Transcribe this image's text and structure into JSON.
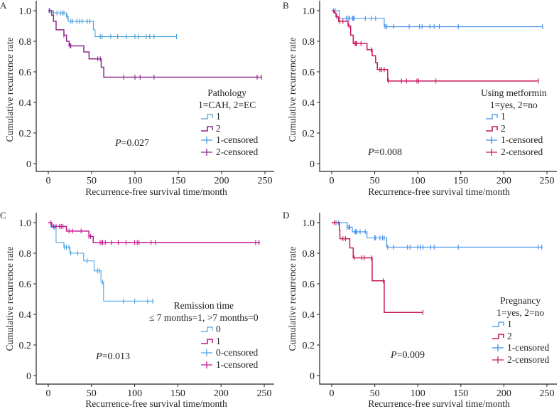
{
  "chart_data": [
    {
      "type": "line",
      "panel": "A",
      "ylabel": "Cumulative recurrence rate",
      "xlabel": "Recurrence-free survival time/month",
      "xlim": [
        0,
        250
      ],
      "ylim": [
        0,
        1.0
      ],
      "xticks": [
        0,
        50,
        100,
        150,
        200,
        250
      ],
      "yticks": [
        0,
        0.2,
        0.4,
        0.6,
        0.8,
        1.0
      ],
      "legend_title": "Pathology",
      "legend_subtitle": "1=CAH, 2=EC",
      "legend_position": "right",
      "p_label": "P",
      "p_value": "=0.027",
      "series": [
        {
          "name": "1",
          "censored_name": "1-censored",
          "color": "#4a9edb",
          "steps": [
            [
              0,
              1
            ],
            [
              6,
              0.985
            ],
            [
              21,
              0.96
            ],
            [
              23,
              0.93
            ],
            [
              52,
              0.875
            ],
            [
              54,
              0.83
            ],
            [
              148,
              0.83
            ]
          ],
          "censored": [
            2,
            6,
            10,
            14,
            16,
            18,
            22,
            26,
            28,
            33,
            36,
            39,
            45,
            48,
            60,
            62,
            72,
            80,
            90,
            100,
            104,
            113,
            117,
            122,
            148
          ]
        },
        {
          "name": "2",
          "censored_name": "2-censored",
          "color": "#8e2a8e",
          "steps": [
            [
              0,
              1
            ],
            [
              4,
              0.97
            ],
            [
              6,
              0.93
            ],
            [
              9,
              0.875
            ],
            [
              18,
              0.84
            ],
            [
              21,
              0.8
            ],
            [
              24,
              0.77
            ],
            [
              41,
              0.73
            ],
            [
              47,
              0.685
            ],
            [
              61,
              0.63
            ],
            [
              64,
              0.565
            ],
            [
              246,
              0.565
            ]
          ],
          "censored": [
            1,
            18,
            25,
            26,
            57,
            60,
            87,
            100,
            106,
            122,
            241,
            246
          ]
        }
      ]
    },
    {
      "type": "line",
      "panel": "B",
      "ylabel": "Cumulative recurrence rate",
      "xlabel": "Recurrence-free survival time/month",
      "xlim": [
        0,
        250
      ],
      "ylim": [
        0,
        1.0
      ],
      "xticks": [
        0,
        50,
        100,
        150,
        200,
        250
      ],
      "yticks": [
        0,
        0.2,
        0.4,
        0.6,
        0.8,
        1.0
      ],
      "legend_title": "Using metformin",
      "legend_subtitle": "1=yes, 2=no",
      "legend_position": "right",
      "p_label": "P",
      "p_value": "=0.008",
      "series": [
        {
          "name": "1",
          "censored_name": "1-censored",
          "color": "#3d8fe8",
          "steps": [
            [
              0,
              1
            ],
            [
              9,
              0.95
            ],
            [
              61,
              0.895
            ],
            [
              245,
              0.895
            ]
          ],
          "censored": [
            2,
            4,
            17,
            19,
            21,
            24,
            25,
            26,
            39,
            46,
            51,
            62,
            64,
            72,
            90,
            102,
            105,
            114,
            119,
            125,
            147,
            245
          ]
        },
        {
          "name": "2",
          "censored_name": "2-censored",
          "color": "#c9195f",
          "steps": [
            [
              0,
              1
            ],
            [
              3,
              0.985
            ],
            [
              5,
              0.96
            ],
            [
              8,
              0.93
            ],
            [
              19,
              0.9
            ],
            [
              22,
              0.84
            ],
            [
              25,
              0.785
            ],
            [
              41,
              0.745
            ],
            [
              47,
              0.705
            ],
            [
              51,
              0.66
            ],
            [
              53,
              0.615
            ],
            [
              65,
              0.54
            ],
            [
              240,
              0.54
            ]
          ],
          "censored": [
            6,
            9,
            13,
            20,
            27,
            28,
            29,
            34,
            46,
            56,
            58,
            61,
            66,
            81,
            87,
            99,
            101,
            121,
            240
          ]
        }
      ]
    },
    {
      "type": "line",
      "panel": "C",
      "ylabel": "Cumulative recurrence rate",
      "xlabel": "Recurrence-free survival time/month",
      "xlim": [
        0,
        250
      ],
      "ylim": [
        0,
        1.0
      ],
      "xticks": [
        0,
        50,
        100,
        150,
        200,
        250
      ],
      "yticks": [
        0,
        0.2,
        0.4,
        0.6,
        0.8,
        1.0
      ],
      "legend_title": "Remission time",
      "legend_subtitle": "≤ 7 months=1, >7 months=0",
      "legend_position": "right",
      "p_label": "P",
      "p_value": "=0.013",
      "series": [
        {
          "name": "0",
          "censored_name": "0-censored",
          "color": "#4aa6e8",
          "steps": [
            [
              0,
              1
            ],
            [
              3,
              0.97
            ],
            [
              9,
              0.87
            ],
            [
              18,
              0.84
            ],
            [
              25,
              0.8
            ],
            [
              41,
              0.75
            ],
            [
              53,
              0.685
            ],
            [
              61,
              0.61
            ],
            [
              64,
              0.487
            ],
            [
              122,
              0.487
            ]
          ],
          "censored": [
            7,
            19,
            21,
            24,
            26,
            34,
            45,
            57,
            59,
            63,
            87,
            100,
            115,
            121
          ]
        },
        {
          "name": "1",
          "censored_name": "1-censored",
          "color": "#c4188f",
          "steps": [
            [
              0,
              1
            ],
            [
              4,
              0.975
            ],
            [
              21,
              0.945
            ],
            [
              47,
              0.91
            ],
            [
              52,
              0.87
            ],
            [
              245,
              0.87
            ]
          ],
          "censored": [
            3,
            6,
            9,
            13,
            15,
            17,
            24,
            28,
            38,
            47,
            49,
            60,
            62,
            63,
            66,
            73,
            81,
            90,
            100,
            103,
            105,
            119,
            124,
            240,
            244
          ]
        }
      ]
    },
    {
      "type": "line",
      "panel": "D",
      "ylabel": "Cumulative recurrence rate",
      "xlabel": "Recurrence-free survival time/month",
      "xlim": [
        0,
        250
      ],
      "ylim": [
        0,
        1.0
      ],
      "xticks": [
        0,
        50,
        100,
        150,
        200,
        250
      ],
      "yticks": [
        0,
        0.2,
        0.4,
        0.6,
        0.8,
        1.0
      ],
      "legend_title": "Pregnancy",
      "legend_subtitle": "1=yes, 2=no",
      "legend_position": "right",
      "p_label": "P",
      "p_value": "=0.009",
      "series": [
        {
          "name": "1",
          "censored_name": "1-censored",
          "color": "#3d8fe8",
          "steps": [
            [
              0,
              1
            ],
            [
              18,
              0.97
            ],
            [
              24,
              0.94
            ],
            [
              41,
              0.9
            ],
            [
              64,
              0.84
            ],
            [
              245,
              0.84
            ]
          ],
          "censored": [
            5,
            8,
            18,
            20,
            21,
            27,
            28,
            29,
            33,
            39,
            50,
            51,
            56,
            59,
            61,
            65,
            72,
            88,
            91,
            100,
            103,
            106,
            115,
            119,
            147,
            240,
            244
          ]
        },
        {
          "name": "2",
          "censored_name": "2-censored",
          "color": "#c9195f",
          "steps": [
            [
              0,
              1
            ],
            [
              9,
              0.95
            ],
            [
              9.5,
              0.895
            ],
            [
              21,
              0.835
            ],
            [
              25,
              0.77
            ],
            [
              47,
              0.62
            ],
            [
              61,
              0.413
            ],
            [
              106,
              0.413
            ]
          ],
          "censored": [
            3,
            13,
            16,
            26,
            35,
            38,
            46,
            60,
            106
          ]
        }
      ]
    }
  ]
}
